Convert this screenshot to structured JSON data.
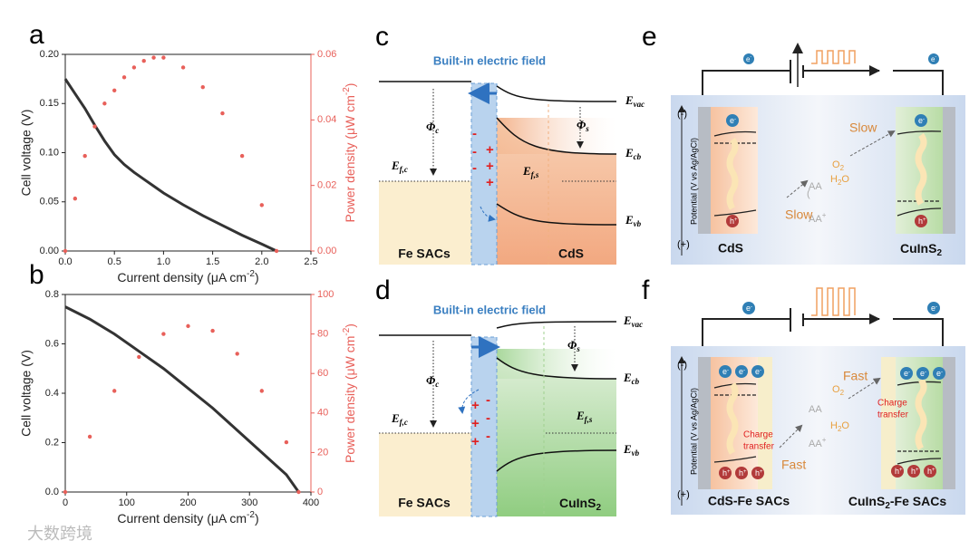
{
  "chart_data": [
    {
      "type": "line",
      "label": "a",
      "x": [
        0,
        0.1,
        0.2,
        0.3,
        0.4,
        0.5,
        0.6,
        0.7,
        0.8,
        0.9,
        1.0,
        1.2,
        1.4,
        1.6,
        1.8,
        2.0,
        2.15
      ],
      "xlim": [
        0,
        2.5
      ],
      "xticks": [
        {
          "value": 0,
          "label": "0.0"
        },
        0.5,
        {
          "value": 1,
          "label": "1.0"
        },
        1.5,
        {
          "value": 2,
          "label": "2.0"
        },
        2.5
      ],
      "xlabel": {
        "text": "Current density (μA cm",
        "sup": "-2",
        "tail": ")"
      },
      "ylabel": "Cell voltage (V)",
      "ylim": [
        0,
        0.2
      ],
      "yticks": [
        {
          "value": 0,
          "label": "0.00"
        },
        0.05,
        {
          "value": 0.1,
          "label": "0.10"
        },
        0.15,
        {
          "value": 0.2,
          "label": "0.20"
        }
      ],
      "y2label": {
        "text": "Power density (μW cm",
        "sup": "-2",
        "tail": ")"
      },
      "y2lim": [
        0,
        0.06
      ],
      "y2ticks": [
        {
          "value": 0,
          "label": "0.00"
        },
        0.02,
        0.04,
        0.06
      ],
      "series": [
        {
          "color": "#333333",
          "values": [
            0.175,
            0.16,
            0.145,
            0.128,
            0.112,
            0.098,
            0.088,
            0.08,
            0.073,
            0.066,
            0.059,
            0.047,
            0.036,
            0.026,
            0.016,
            0.007,
            0
          ]
        },
        {
          "color": "#e8605a",
          "axis": "y2",
          "values": [
            0,
            0.016,
            0.029,
            0.038,
            0.045,
            0.049,
            0.053,
            0.056,
            0.058,
            0.059,
            0.059,
            0.056,
            0.05,
            0.042,
            0.029,
            0.014,
            0
          ]
        }
      ]
    },
    {
      "type": "line",
      "label": "b",
      "x": [
        0,
        40,
        80,
        120,
        160,
        200,
        240,
        280,
        320,
        360,
        380
      ],
      "xlim": [
        0,
        400
      ],
      "xticks": [
        0,
        100,
        200,
        300,
        400
      ],
      "xlabel": {
        "text": "Current density (μA cm",
        "sup": "-2",
        "tail": ")"
      },
      "ylabel": "Cell voltage (V)",
      "ylim": [
        0,
        0.8
      ],
      "yticks": [
        {
          "value": 0,
          "label": "0.0"
        },
        0.2,
        0.4,
        0.6,
        0.8
      ],
      "y2label": {
        "text": "Power density (μW cm",
        "sup": "-2",
        "tail": ")"
      },
      "y2lim": [
        0,
        100
      ],
      "y2ticks": [
        0,
        20,
        40,
        60,
        80,
        100
      ],
      "series": [
        {
          "color": "#333333",
          "values": [
            0.75,
            0.7,
            0.64,
            0.57,
            0.5,
            0.42,
            0.34,
            0.25,
            0.16,
            0.07,
            0
          ]
        },
        {
          "color": "#e8605a",
          "axis": "y2",
          "values": [
            0,
            28,
            51.2,
            68.4,
            80,
            84,
            81.6,
            70,
            51.2,
            25.2,
            0
          ]
        }
      ]
    }
  ],
  "diagrams": {
    "c": {
      "label": "c",
      "field": "Built-in electric field",
      "phi_c": {
        "text": "Φ",
        "sub": "c"
      },
      "phi_s": {
        "text": "Φ",
        "sub": "s"
      },
      "ef_c": {
        "text": "E",
        "sub": "f,c"
      },
      "ef_s": {
        "text": "E",
        "sub": "f,s"
      },
      "evac": {
        "text": "E",
        "sub": "vac"
      },
      "ecb": {
        "text": "E",
        "sub": "cb"
      },
      "evb": {
        "text": "E",
        "sub": "vb"
      },
      "left": "Fe SACs",
      "right": {
        "text": "CdS"
      },
      "minus": "-",
      "plus": "+"
    },
    "d": {
      "label": "d",
      "field": "Built-in electric field",
      "phi_c": {
        "text": "Φ",
        "sub": "c"
      },
      "phi_s": {
        "text": "Φ",
        "sub": "s"
      },
      "ef_c": {
        "text": "E",
        "sub": "f,c"
      },
      "ef_s": {
        "text": "E",
        "sub": "f,s"
      },
      "evac": {
        "text": "E",
        "sub": "vac"
      },
      "ecb": {
        "text": "E",
        "sub": "cb"
      },
      "evb": {
        "text": "E",
        "sub": "vb"
      },
      "left": "Fe SACs",
      "right": {
        "text": "CuInS",
        "sub": "2"
      },
      "minus": "-",
      "plus": "+"
    },
    "e": {
      "label": "e",
      "neg": "(-)",
      "pos": "(+)",
      "axis": "Potential (V vs Ag/AgCl)",
      "electron": {
        "text": "e",
        "sup": "-"
      },
      "hole": {
        "text": "h",
        "sup": "+"
      },
      "rate": "Slow",
      "aa": "AA",
      "aa_plus": {
        "text": "AA",
        "sup": "+"
      },
      "o2": {
        "text": "O",
        "sub": "2"
      },
      "h2o": {
        "text": "H",
        "sub": "2",
        "tail": "O"
      },
      "left": "CdS",
      "right": {
        "text": "CuInS",
        "sub": "2"
      }
    },
    "f": {
      "label": "f",
      "neg": "(-)",
      "pos": "(+)",
      "axis": "Potential (V vs Ag/AgCl)",
      "electron": {
        "text": "e",
        "sup": "-"
      },
      "hole": {
        "text": "h",
        "sup": "+"
      },
      "rate": "Fast",
      "aa": "AA",
      "aa_plus": {
        "text": "AA",
        "sup": "+"
      },
      "o2": {
        "text": "O",
        "sub": "2"
      },
      "h2o": {
        "text": "H",
        "sub": "2",
        "tail": "O"
      },
      "transfer": [
        "Charge",
        "transfer"
      ],
      "left": "CdS-Fe SACs",
      "right": {
        "text": "CuInS",
        "sub": "2",
        "tail": "-Fe SACs"
      }
    }
  },
  "watermark": "大数跨境"
}
